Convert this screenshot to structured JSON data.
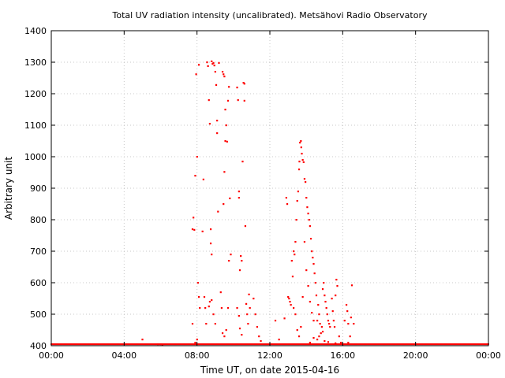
{
  "chart_data": {
    "type": "scatter",
    "title": "Total UV radiation intensity (uncalibrated). Metsähovi Radio Observatory",
    "xlabel": "Time UT, on date 2015-04-16",
    "ylabel": "Arbitrary unit",
    "xlim": [
      0,
      24
    ],
    "ylim": [
      400,
      1400
    ],
    "x_ticks": [
      0,
      4,
      8,
      12,
      16,
      20,
      24
    ],
    "x_tick_labels": [
      "00:00",
      "04:00",
      "08:00",
      "12:00",
      "16:00",
      "20:00",
      "00:00"
    ],
    "y_ticks": [
      400,
      500,
      600,
      700,
      800,
      900,
      1000,
      1100,
      1200,
      1300,
      1400
    ],
    "y_tick_labels": [
      "400",
      "500",
      "600",
      "700",
      "800",
      "900",
      "1000",
      "1100",
      "1200",
      "1300",
      "1400"
    ],
    "grid": true,
    "marker_color": "#ff0000",
    "baseline": {
      "value": 401,
      "x_from": 0,
      "x_to": 24,
      "note": "continuous points at baseline"
    },
    "series": [
      {
        "points": [
          [
            5.0,
            420
          ],
          [
            5.85,
            405
          ],
          [
            6.0,
            405
          ],
          [
            6.1,
            403
          ],
          [
            7.75,
            770
          ],
          [
            7.8,
            807
          ],
          [
            7.85,
            768
          ],
          [
            7.9,
            940
          ],
          [
            7.95,
            1262
          ],
          [
            8.0,
            1000
          ],
          [
            8.05,
            600
          ],
          [
            8.1,
            1292
          ],
          [
            8.1,
            555
          ],
          [
            8.15,
            520
          ],
          [
            7.75,
            470
          ],
          [
            7.9,
            410
          ],
          [
            8.0,
            420
          ],
          [
            8.3,
            763
          ],
          [
            8.35,
            928
          ],
          [
            8.4,
            555
          ],
          [
            8.45,
            520
          ],
          [
            8.5,
            470
          ],
          [
            8.55,
            1300
          ],
          [
            8.6,
            1288
          ],
          [
            8.65,
            1180
          ],
          [
            8.7,
            1105
          ],
          [
            8.75,
            770
          ],
          [
            8.75,
            725
          ],
          [
            8.8,
            1303
          ],
          [
            8.85,
            1295
          ],
          [
            8.9,
            1298
          ],
          [
            8.95,
            1290
          ],
          [
            9.0,
            1270
          ],
          [
            9.05,
            1228
          ],
          [
            9.1,
            1115
          ],
          [
            9.1,
            1075
          ],
          [
            9.15,
            826
          ],
          [
            9.2,
            1298
          ],
          [
            8.8,
            690
          ],
          [
            8.65,
            525
          ],
          [
            8.7,
            540
          ],
          [
            8.8,
            545
          ],
          [
            8.9,
            500
          ],
          [
            9.0,
            470
          ],
          [
            9.3,
            570
          ],
          [
            9.35,
            520
          ],
          [
            9.4,
            1270
          ],
          [
            9.45,
            1262
          ],
          [
            9.5,
            1255
          ],
          [
            9.55,
            1150
          ],
          [
            9.6,
            1100
          ],
          [
            9.45,
            850
          ],
          [
            9.5,
            952
          ],
          [
            9.55,
            1050
          ],
          [
            9.65,
            1048
          ],
          [
            9.7,
            1178
          ],
          [
            9.75,
            1222
          ],
          [
            9.6,
            450
          ],
          [
            9.7,
            520
          ],
          [
            9.75,
            670
          ],
          [
            9.8,
            868
          ],
          [
            9.85,
            690
          ],
          [
            9.4,
            440
          ],
          [
            9.5,
            430
          ],
          [
            10.2,
            1220
          ],
          [
            10.25,
            1180
          ],
          [
            10.3,
            890
          ],
          [
            10.3,
            870
          ],
          [
            10.35,
            640
          ],
          [
            10.4,
            685
          ],
          [
            10.45,
            670
          ],
          [
            10.5,
            985
          ],
          [
            10.55,
            1235
          ],
          [
            10.6,
            1232
          ],
          [
            10.6,
            1178
          ],
          [
            10.65,
            780
          ],
          [
            10.7,
            533
          ],
          [
            10.75,
            500
          ],
          [
            10.8,
            470
          ],
          [
            10.85,
            563
          ],
          [
            10.9,
            520
          ],
          [
            10.2,
            520
          ],
          [
            10.3,
            495
          ],
          [
            10.35,
            455
          ],
          [
            10.45,
            435
          ],
          [
            11.1,
            550
          ],
          [
            11.2,
            500
          ],
          [
            11.3,
            460
          ],
          [
            11.4,
            430
          ],
          [
            11.5,
            415
          ],
          [
            12.3,
            480
          ],
          [
            12.5,
            420
          ],
          [
            12.8,
            487
          ],
          [
            12.9,
            870
          ],
          [
            12.95,
            850
          ],
          [
            13.0,
            555
          ],
          [
            13.05,
            550
          ],
          [
            13.1,
            540
          ],
          [
            13.15,
            530
          ],
          [
            13.2,
            670
          ],
          [
            13.25,
            620
          ],
          [
            13.3,
            700
          ],
          [
            13.35,
            690
          ],
          [
            13.4,
            730
          ],
          [
            13.45,
            800
          ],
          [
            13.5,
            860
          ],
          [
            13.55,
            890
          ],
          [
            13.6,
            960
          ],
          [
            13.62,
            985
          ],
          [
            13.65,
            1045
          ],
          [
            13.7,
            1050
          ],
          [
            13.72,
            1030
          ],
          [
            13.75,
            1010
          ],
          [
            13.8,
            990
          ],
          [
            13.85,
            983
          ],
          [
            13.9,
            930
          ],
          [
            13.95,
            920
          ],
          [
            14.0,
            870
          ],
          [
            14.05,
            840
          ],
          [
            14.1,
            820
          ],
          [
            14.15,
            800
          ],
          [
            14.2,
            780
          ],
          [
            14.25,
            740
          ],
          [
            14.3,
            700
          ],
          [
            14.35,
            680
          ],
          [
            14.4,
            660
          ],
          [
            14.45,
            630
          ],
          [
            14.5,
            600
          ],
          [
            14.55,
            560
          ],
          [
            13.3,
            520
          ],
          [
            13.4,
            500
          ],
          [
            13.5,
            450
          ],
          [
            13.6,
            430
          ],
          [
            13.7,
            460
          ],
          [
            13.8,
            555
          ],
          [
            13.9,
            730
          ],
          [
            14.0,
            640
          ],
          [
            14.1,
            590
          ],
          [
            14.2,
            540
          ],
          [
            14.3,
            505
          ],
          [
            14.4,
            480
          ],
          [
            14.6,
            480
          ],
          [
            14.65,
            530
          ],
          [
            14.7,
            500
          ],
          [
            14.75,
            470
          ],
          [
            14.8,
            440
          ],
          [
            14.85,
            460
          ],
          [
            14.9,
            580
          ],
          [
            14.95,
            600
          ],
          [
            15.0,
            560
          ],
          [
            15.05,
            540
          ],
          [
            15.1,
            520
          ],
          [
            15.15,
            500
          ],
          [
            15.2,
            480
          ],
          [
            15.25,
            470
          ],
          [
            15.3,
            460
          ],
          [
            14.6,
            420
          ],
          [
            14.7,
            430
          ],
          [
            14.9,
            445
          ],
          [
            15.4,
            550
          ],
          [
            15.45,
            510
          ],
          [
            15.5,
            480
          ],
          [
            15.55,
            460
          ],
          [
            15.6,
            560
          ],
          [
            15.65,
            610
          ],
          [
            15.7,
            590
          ],
          [
            15.8,
            430
          ],
          [
            15.9,
            410
          ],
          [
            16.0,
            405
          ],
          [
            16.1,
            480
          ],
          [
            16.2,
            530
          ],
          [
            16.25,
            510
          ],
          [
            16.3,
            470
          ],
          [
            16.4,
            430
          ],
          [
            16.45,
            490
          ],
          [
            16.5,
            592
          ],
          [
            16.6,
            470
          ],
          [
            14.2,
            410
          ],
          [
            14.4,
            425
          ],
          [
            15.0,
            415
          ],
          [
            15.2,
            412
          ],
          [
            15.6,
            408
          ],
          [
            16.3,
            410
          ]
        ]
      }
    ]
  }
}
